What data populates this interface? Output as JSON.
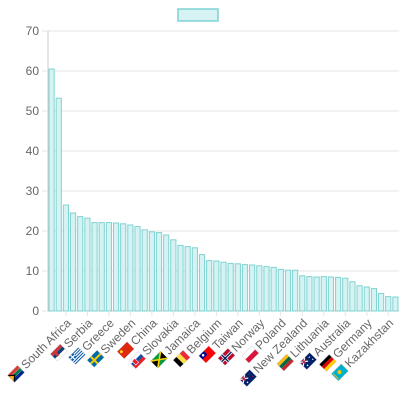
{
  "chart_data": {
    "type": "bar",
    "legend": {
      "position": "top",
      "label": ""
    },
    "colors": {
      "bar_fill": "#d6f2f2",
      "bar_stroke": "#7fd3d3",
      "grid": "#e5e5e5",
      "axis": "#cccccc",
      "text": "#666666"
    },
    "ylim": [
      0,
      70
    ],
    "yticks": [
      0,
      10,
      20,
      30,
      40,
      50,
      60,
      70
    ],
    "values": [
      60.5,
      53.2,
      26.5,
      24.5,
      23.6,
      23.2,
      22.1,
      22.1,
      22.1,
      22.0,
      21.8,
      21.5,
      21.1,
      20.3,
      19.8,
      19.6,
      19.0,
      17.8,
      16.4,
      16.1,
      15.8,
      14.1,
      12.6,
      12.5,
      12.2,
      11.9,
      11.8,
      11.6,
      11.5,
      11.3,
      11.1,
      10.9,
      10.4,
      10.2,
      10.2,
      8.8,
      8.6,
      8.5,
      8.6,
      8.5,
      8.4,
      8.2,
      7.3,
      6.3,
      6.0,
      5.6,
      4.4,
      3.6,
      3.5
    ],
    "labeled_categories": [
      {
        "index": 2,
        "label": "South Africa",
        "flag": "south-africa-flag"
      },
      {
        "index": 5,
        "label": "Serbia",
        "flag": "serbia-flag"
      },
      {
        "index": 8,
        "label": "Greece",
        "flag": "greece-flag"
      },
      {
        "index": 11,
        "label": "Sweden",
        "flag": "sweden-flag"
      },
      {
        "index": 14,
        "label": "China",
        "flag": "china-flag"
      },
      {
        "index": 17,
        "label": "Slovakia",
        "flag": "slovakia-flag"
      },
      {
        "index": 20,
        "label": "Jamaica",
        "flag": "jamaica-flag"
      },
      {
        "index": 23,
        "label": "Belgium",
        "flag": "belgium-flag"
      },
      {
        "index": 26,
        "label": "Taiwan",
        "flag": "taiwan-flag"
      },
      {
        "index": 29,
        "label": "Norway",
        "flag": "norway-flag"
      },
      {
        "index": 32,
        "label": "Poland",
        "flag": "poland-flag"
      },
      {
        "index": 35,
        "label": "New Zealand",
        "flag": "new-zealand-flag"
      },
      {
        "index": 38,
        "label": "Lithuania",
        "flag": "lithuania-flag"
      },
      {
        "index": 41,
        "label": "Australia",
        "flag": "australia-flag"
      },
      {
        "index": 44,
        "label": "Germany",
        "flag": "germany-flag"
      },
      {
        "index": 47,
        "label": "Kazakhstan",
        "flag": "kazakhstan-flag"
      }
    ]
  }
}
